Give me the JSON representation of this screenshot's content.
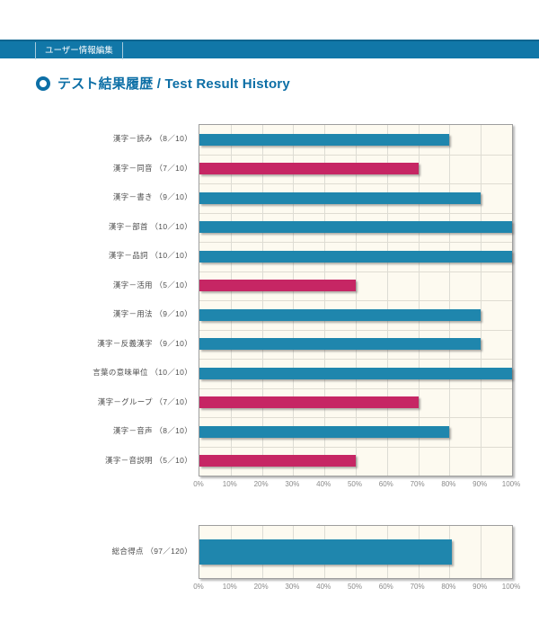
{
  "nav": {
    "tab_label": "ユーザー情報編集"
  },
  "header": {
    "title": "テスト結果履歴 / Test Result History"
  },
  "colors": {
    "nav_bar": "#1177a8",
    "nav_bar_top_edge": "#0c6590",
    "heading_accent": "#0d6fa6",
    "bar_high": "#1f86ad",
    "bar_low": "#c62664",
    "plot_background": "#fdfaf0",
    "plot_border": "#9e9e9e"
  },
  "chart_data": [
    {
      "type": "bar",
      "orientation": "horizontal",
      "title": "",
      "xlabel": "",
      "ylabel": "",
      "xlim": [
        0,
        100
      ],
      "grid": true,
      "legend": false,
      "categories": [
        "漢字－読み （8／10）",
        "漢字－同音 （7／10）",
        "漢字－書き （9／10）",
        "漢字－部首 （10／10）",
        "漢字－品詞 （10／10）",
        "漢字－活用 （5／10）",
        "漢字－用法 （9／10）",
        "漢字－反義漢字 （9／10）",
        "言葉の意味単位 （10／10）",
        "漢字－グループ （7／10）",
        "漢字－音声 （8／10）",
        "漢字－音説明 （5／10）"
      ],
      "scores": [
        "8/10",
        "7/10",
        "9/10",
        "10/10",
        "10/10",
        "5/10",
        "9/10",
        "9/10",
        "10/10",
        "7/10",
        "8/10",
        "5/10"
      ],
      "values": [
        80,
        70,
        90,
        100,
        100,
        50,
        90,
        90,
        100,
        70,
        80,
        50
      ],
      "bar_colors": [
        "#1f86ad",
        "#c62664",
        "#1f86ad",
        "#1f86ad",
        "#1f86ad",
        "#c62664",
        "#1f86ad",
        "#1f86ad",
        "#1f86ad",
        "#c62664",
        "#1f86ad",
        "#c62664"
      ],
      "x_ticks": [
        "0%",
        "10%",
        "20%",
        "30%",
        "40%",
        "50%",
        "60%",
        "70%",
        "80%",
        "90%",
        "100%"
      ]
    },
    {
      "type": "bar",
      "orientation": "horizontal",
      "title": "",
      "xlabel": "",
      "ylabel": "",
      "xlim": [
        0,
        100
      ],
      "grid": true,
      "legend": false,
      "categories": [
        "総合得点 （97／120）"
      ],
      "scores": [
        "97/120"
      ],
      "values": [
        80.8
      ],
      "bar_colors": [
        "#1f86ad"
      ],
      "x_ticks": [
        "0%",
        "10%",
        "20%",
        "30%",
        "40%",
        "50%",
        "60%",
        "70%",
        "80%",
        "90%",
        "100%"
      ]
    }
  ]
}
